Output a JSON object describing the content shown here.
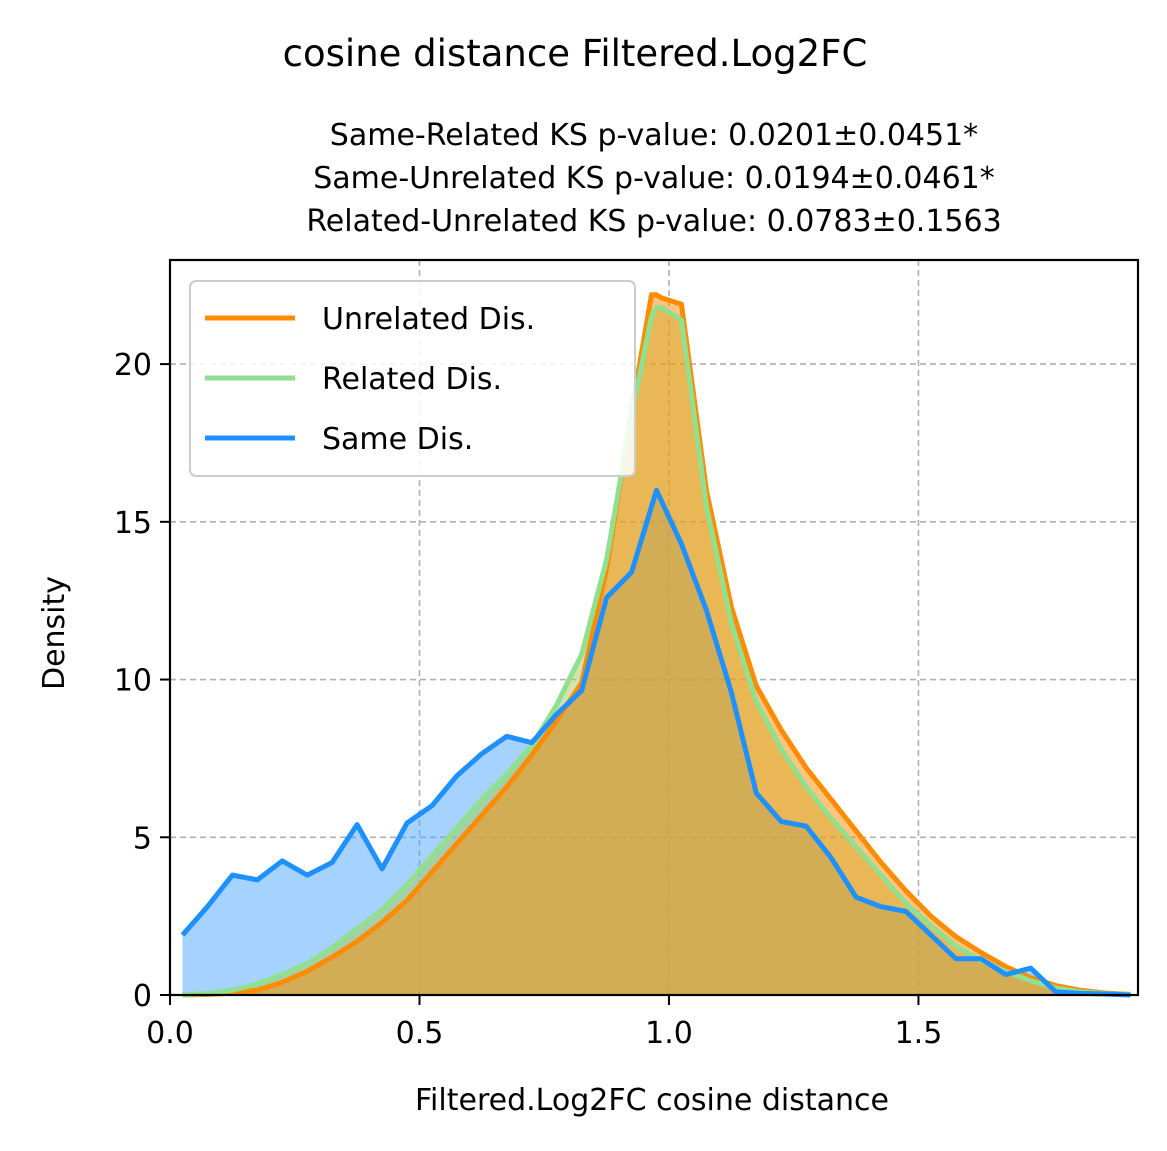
{
  "figure": {
    "suptitle": "cosine distance Filtered.Log2FC",
    "subtitle_lines": [
      "Same-Related KS p-value: 0.0201±0.0451*",
      "Same-Unrelated KS p-value: 0.0194±0.0461*",
      "Related-Unrelated KS p-value: 0.0783±0.1563"
    ]
  },
  "chart_data": {
    "type": "area",
    "title": "cosine distance Filtered.Log2FC",
    "xlabel": "Filtered.Log2FC cosine distance",
    "ylabel": "Density",
    "xlim": [
      0.0,
      1.94
    ],
    "ylim": [
      0,
      23.3
    ],
    "xticks": [
      0.0,
      0.5,
      1.0,
      1.5
    ],
    "xtick_labels": [
      "0.0",
      "0.5",
      "1.0",
      "1.5"
    ],
    "yticks": [
      0,
      5,
      10,
      15,
      20
    ],
    "ytick_labels": [
      "0",
      "5",
      "10",
      "15",
      "20"
    ],
    "grid": true,
    "legend_position": "upper-left",
    "series": [
      {
        "name": "Unrelated Dis.",
        "color": "#FF8C00",
        "fill": "#FF8C00",
        "x": [
          0.025,
          0.075,
          0.125,
          0.175,
          0.225,
          0.275,
          0.325,
          0.375,
          0.425,
          0.475,
          0.525,
          0.575,
          0.625,
          0.675,
          0.725,
          0.775,
          0.825,
          0.875,
          0.925,
          0.965,
          0.975,
          0.985,
          1.025,
          1.075,
          1.125,
          1.175,
          1.225,
          1.275,
          1.325,
          1.375,
          1.425,
          1.475,
          1.525,
          1.575,
          1.625,
          1.675,
          1.725,
          1.775,
          1.825,
          1.875,
          1.925
        ],
        "y": [
          0.0,
          0.02,
          0.06,
          0.15,
          0.4,
          0.75,
          1.2,
          1.7,
          2.3,
          3.0,
          3.9,
          4.8,
          5.7,
          6.6,
          7.6,
          8.7,
          9.9,
          13.5,
          18.5,
          22.2,
          22.2,
          22.1,
          21.9,
          16.0,
          12.3,
          9.8,
          8.4,
          7.2,
          6.2,
          5.2,
          4.2,
          3.3,
          2.5,
          1.85,
          1.35,
          0.9,
          0.55,
          0.3,
          0.15,
          0.06,
          0.02
        ]
      },
      {
        "name": "Related Dis.",
        "color": "#90E090",
        "fill": "#A7C85A",
        "x": [
          0.025,
          0.075,
          0.125,
          0.175,
          0.225,
          0.275,
          0.325,
          0.375,
          0.425,
          0.475,
          0.525,
          0.575,
          0.625,
          0.675,
          0.725,
          0.775,
          0.825,
          0.875,
          0.925,
          0.965,
          0.975,
          0.985,
          1.025,
          1.075,
          1.125,
          1.175,
          1.225,
          1.275,
          1.325,
          1.375,
          1.425,
          1.475,
          1.525,
          1.575,
          1.625,
          1.675,
          1.725,
          1.775,
          1.825,
          1.875,
          1.925
        ],
        "y": [
          0.0,
          0.05,
          0.15,
          0.35,
          0.65,
          1.0,
          1.5,
          2.1,
          2.7,
          3.5,
          4.4,
          5.3,
          6.2,
          7.0,
          7.9,
          9.2,
          10.8,
          13.8,
          18.4,
          21.5,
          21.8,
          21.8,
          21.4,
          15.5,
          11.8,
          9.3,
          7.8,
          6.6,
          5.6,
          4.7,
          3.8,
          2.9,
          2.2,
          1.55,
          1.1,
          0.75,
          0.45,
          0.22,
          0.1,
          0.04,
          0.01
        ]
      },
      {
        "name": "Same Dis.",
        "color": "#1E90FF",
        "fill": "#4DA6FF",
        "x": [
          0.025,
          0.075,
          0.125,
          0.175,
          0.225,
          0.275,
          0.325,
          0.375,
          0.425,
          0.475,
          0.525,
          0.575,
          0.625,
          0.675,
          0.725,
          0.775,
          0.825,
          0.875,
          0.925,
          0.975,
          1.025,
          1.075,
          1.125,
          1.175,
          1.225,
          1.275,
          1.325,
          1.375,
          1.425,
          1.475,
          1.525,
          1.575,
          1.625,
          1.675,
          1.725,
          1.775,
          1.825,
          1.875,
          1.925
        ],
        "y": [
          1.9,
          2.8,
          3.8,
          3.65,
          4.25,
          3.8,
          4.2,
          5.4,
          4.0,
          5.45,
          6.0,
          6.95,
          7.65,
          8.2,
          8.0,
          8.9,
          9.65,
          12.6,
          13.4,
          16.0,
          14.3,
          12.2,
          9.6,
          6.4,
          5.5,
          5.35,
          4.35,
          3.1,
          2.8,
          2.65,
          1.9,
          1.15,
          1.15,
          0.65,
          0.85,
          0.1,
          0.05,
          0.03,
          0.0
        ]
      }
    ]
  }
}
